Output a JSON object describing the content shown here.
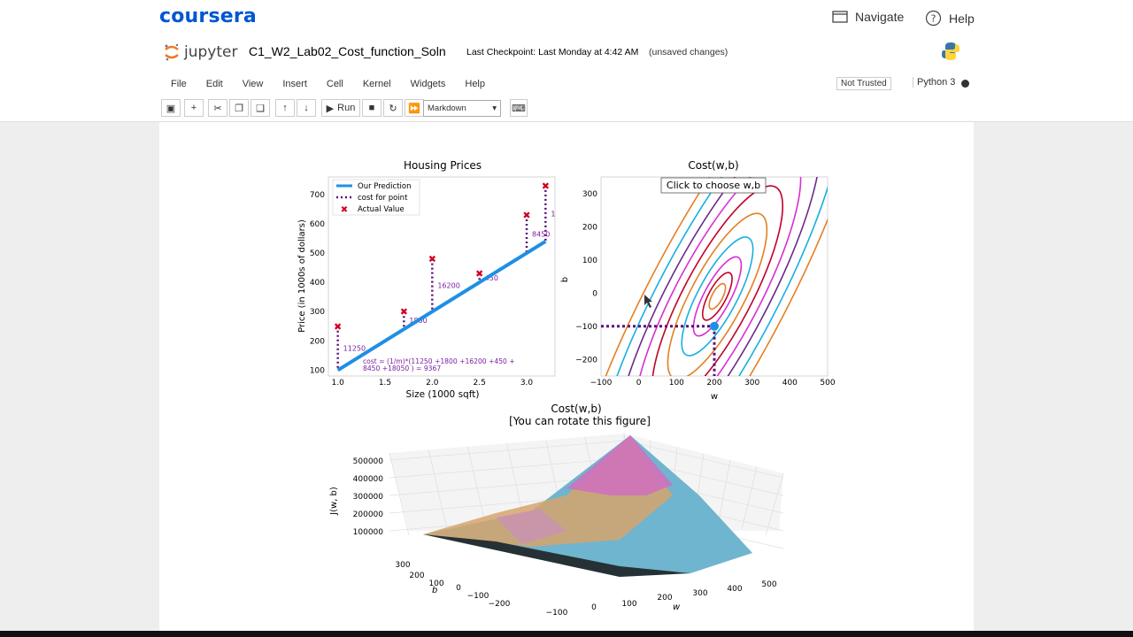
{
  "coursera": {
    "brand": "coursera",
    "navigate_label": "Navigate",
    "help_label": "Help"
  },
  "jupyter": {
    "logo_text": "jupyter",
    "notebook_name": "C1_W2_Lab02_Cost_function_Soln",
    "checkpoint": "Last Checkpoint: Last Monday at 4:42 AM",
    "unsaved": "(unsaved changes)",
    "menu": [
      "File",
      "Edit",
      "View",
      "Insert",
      "Cell",
      "Kernel",
      "Widgets",
      "Help"
    ],
    "trusted": "Not Trusted",
    "kernel": "Python 3",
    "run_label": "Run",
    "cell_type": "Markdown"
  },
  "figure": {
    "housing": {
      "title": "Housing Prices",
      "xlabel": "Size (1000 sqft)",
      "ylabel": "Price (in 1000s of dollars)",
      "xticks": [
        "1.0",
        "1.5",
        "2.0",
        "2.5",
        "3.0"
      ],
      "yticks": [
        "100",
        "200",
        "300",
        "400",
        "500",
        "600",
        "700"
      ],
      "legend": [
        "Our Prediction",
        "cost for point",
        "Actual Value"
      ],
      "cost_labels": [
        "11250",
        "1800",
        "16200",
        "450",
        "8450",
        "18050"
      ],
      "cost_text_line1": "cost = (1/m)*(11250 +1800 +16200 +450 +",
      "cost_text_line2": "8450 +18050 ) = 9367"
    },
    "contour": {
      "title": "Cost(w,b)",
      "button": "Click to choose w,b",
      "xlabel": "w",
      "ylabel": "b",
      "xticks": [
        "−100",
        "0",
        "100",
        "200",
        "300",
        "400",
        "500"
      ],
      "yticks": [
        "300",
        "200",
        "100",
        "0",
        "−100",
        "−200"
      ]
    },
    "surface": {
      "title_line1": "Cost(w,b)",
      "title_line2": "[You can rotate this figure]",
      "zlabel": "J(w, b)",
      "zticks": [
        "500000",
        "400000",
        "300000",
        "200000",
        "100000"
      ],
      "b_label": "b",
      "w_label": "w",
      "b_ticks": [
        "300",
        "200",
        "100",
        "0",
        "−100",
        "−200"
      ],
      "w_ticks": [
        "−100",
        "0",
        "100",
        "200",
        "300",
        "400",
        "500"
      ]
    }
  },
  "chart_data": [
    {
      "type": "scatter",
      "title": "Housing Prices",
      "xlabel": "Size (1000 sqft)",
      "ylabel": "Price (in 1000s of dollars)",
      "xlim": [
        0.9,
        3.3
      ],
      "ylim": [
        80,
        760
      ],
      "series": [
        {
          "name": "Actual Value",
          "x": [
            1.0,
            1.7,
            2.0,
            2.5,
            3.0,
            3.2
          ],
          "y": [
            250,
            300,
            480,
            430,
            630,
            730
          ]
        },
        {
          "name": "Our Prediction",
          "x": [
            1.0,
            3.2
          ],
          "y": [
            100,
            540
          ]
        }
      ],
      "point_costs": [
        11250,
        1800,
        16200,
        450,
        8450,
        18050
      ],
      "total_cost": 9367
    },
    {
      "type": "contour",
      "title": "Cost(w,b)",
      "xlabel": "w",
      "ylabel": "b",
      "xlim": [
        -100,
        500
      ],
      "ylim": [
        -250,
        350
      ],
      "selected_point": {
        "w": 200,
        "b": -100
      }
    },
    {
      "type": "surface",
      "title": "Cost(w,b)",
      "zlabel": "J(w, b)",
      "w_range": [
        -100,
        500
      ],
      "b_range": [
        -200,
        300
      ],
      "z_ticks": [
        100000,
        200000,
        300000,
        400000,
        500000
      ]
    }
  ],
  "colors": {
    "coursera_blue": "#0056d2",
    "prediction": "#1f8fe5",
    "actual": "#d1001f",
    "cost_line": "#5b0f7a"
  }
}
